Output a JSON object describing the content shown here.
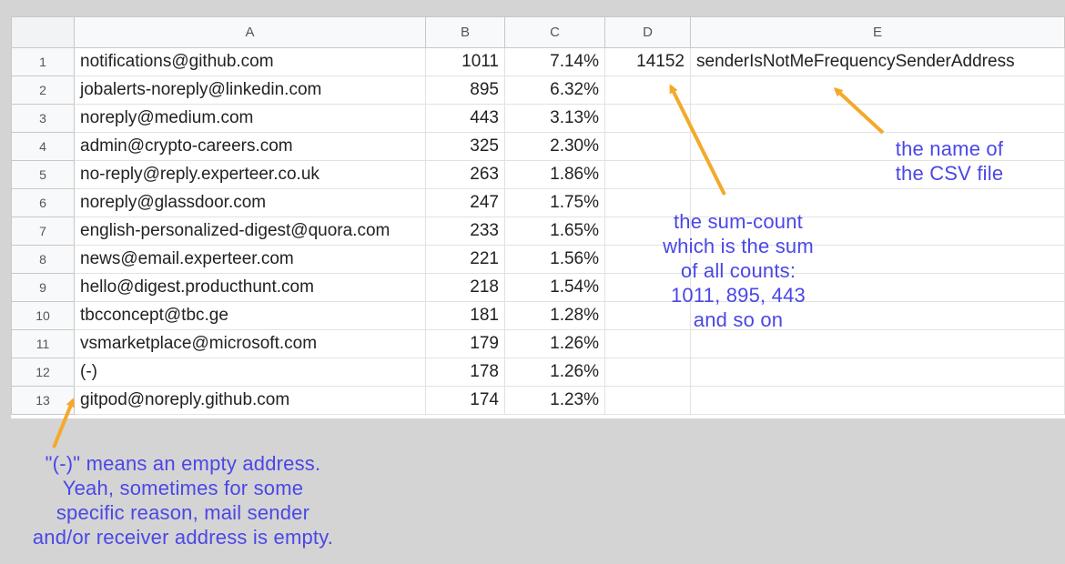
{
  "columns": [
    "A",
    "B",
    "C",
    "D",
    "E"
  ],
  "rows": [
    {
      "n": "1",
      "a": "notifications@github.com",
      "b": "1011",
      "c": "7.14%",
      "d": "14152",
      "e": "senderIsNotMeFrequencySenderAddress"
    },
    {
      "n": "2",
      "a": "jobalerts-noreply@linkedin.com",
      "b": "895",
      "c": "6.32%",
      "d": "",
      "e": ""
    },
    {
      "n": "3",
      "a": "noreply@medium.com",
      "b": "443",
      "c": "3.13%",
      "d": "",
      "e": ""
    },
    {
      "n": "4",
      "a": "admin@crypto-careers.com",
      "b": "325",
      "c": "2.30%",
      "d": "",
      "e": ""
    },
    {
      "n": "5",
      "a": "no-reply@reply.experteer.co.uk",
      "b": "263",
      "c": "1.86%",
      "d": "",
      "e": ""
    },
    {
      "n": "6",
      "a": "noreply@glassdoor.com",
      "b": "247",
      "c": "1.75%",
      "d": "",
      "e": ""
    },
    {
      "n": "7",
      "a": "english-personalized-digest@quora.com",
      "b": "233",
      "c": "1.65%",
      "d": "",
      "e": ""
    },
    {
      "n": "8",
      "a": "news@email.experteer.com",
      "b": "221",
      "c": "1.56%",
      "d": "",
      "e": ""
    },
    {
      "n": "9",
      "a": "hello@digest.producthunt.com",
      "b": "218",
      "c": "1.54%",
      "d": "",
      "e": ""
    },
    {
      "n": "10",
      "a": "tbcconcept@tbc.ge",
      "b": "181",
      "c": "1.28%",
      "d": "",
      "e": ""
    },
    {
      "n": "11",
      "a": "vsmarketplace@microsoft.com",
      "b": "179",
      "c": "1.26%",
      "d": "",
      "e": ""
    },
    {
      "n": "12",
      "a": "(-)",
      "b": "178",
      "c": "1.26%",
      "d": "",
      "e": ""
    },
    {
      "n": "13",
      "a": "gitpod@noreply.github.com",
      "b": "174",
      "c": "1.23%",
      "d": "",
      "e": ""
    }
  ],
  "annotations": {
    "csv_name": [
      "the name of",
      "the CSV file"
    ],
    "sum_count": [
      "the sum-count",
      "which is the sum",
      "of all counts:",
      "1011, 895, 443",
      "and so on"
    ],
    "empty_address": [
      "\"(-)\" means an empty address.",
      "Yeah, sometimes for some",
      "specific reason, mail sender",
      "and/or receiver address is empty."
    ]
  },
  "colors": {
    "annotation_text": "#4b47e6",
    "arrow": "#f4a92a",
    "background": "#d4d4d4"
  }
}
